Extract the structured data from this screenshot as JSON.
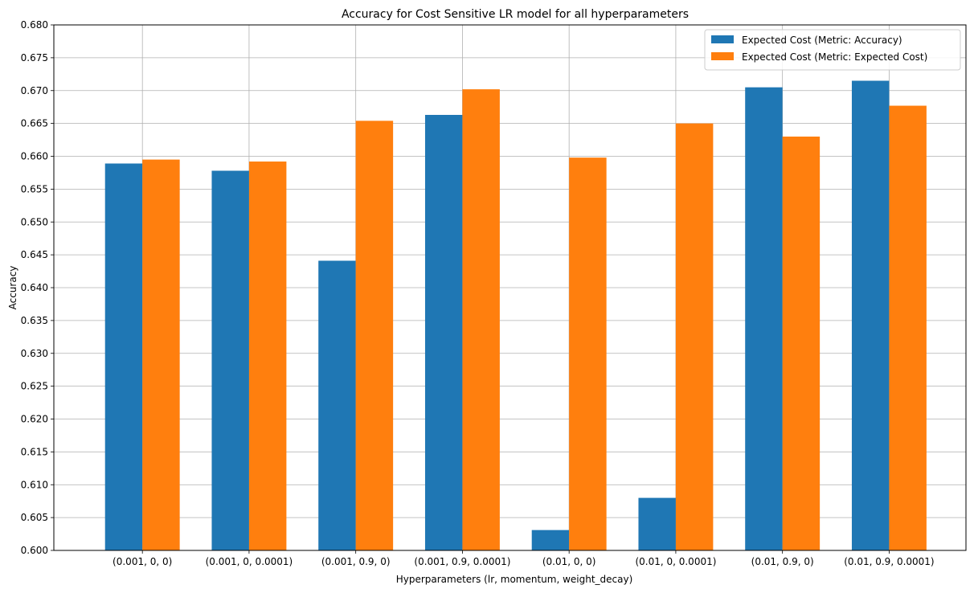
{
  "chart_data": {
    "type": "bar",
    "title": "Accuracy for Cost Sensitive LR model for all hyperparameters",
    "xlabel": "Hyperparameters (lr, momentum, weight_decay)",
    "ylabel": "Accuracy",
    "ylim": [
      0.6,
      0.68
    ],
    "yticks": [
      0.6,
      0.605,
      0.61,
      0.615,
      0.62,
      0.625,
      0.63,
      0.635,
      0.64,
      0.645,
      0.65,
      0.655,
      0.66,
      0.665,
      0.67,
      0.675,
      0.68
    ],
    "grid": true,
    "legend_position": "top-right",
    "categories": [
      "(0.001, 0, 0)",
      "(0.001, 0, 0.0001)",
      "(0.001, 0.9, 0)",
      "(0.001, 0.9, 0.0001)",
      "(0.01, 0, 0)",
      "(0.01, 0, 0.0001)",
      "(0.01, 0.9, 0)",
      "(0.01, 0.9, 0.0001)"
    ],
    "series": [
      {
        "name": "Expected Cost (Metric: Accuracy)",
        "color": "#1f77b4",
        "values": [
          0.6589,
          0.6578,
          0.6441,
          0.6663,
          0.6031,
          0.608,
          0.6705,
          0.6715
        ]
      },
      {
        "name": "Expected Cost (Metric: Expected Cost)",
        "color": "#ff7f0e",
        "values": [
          0.6595,
          0.6592,
          0.6654,
          0.6702,
          0.6598,
          0.665,
          0.663,
          0.6677
        ]
      }
    ]
  }
}
